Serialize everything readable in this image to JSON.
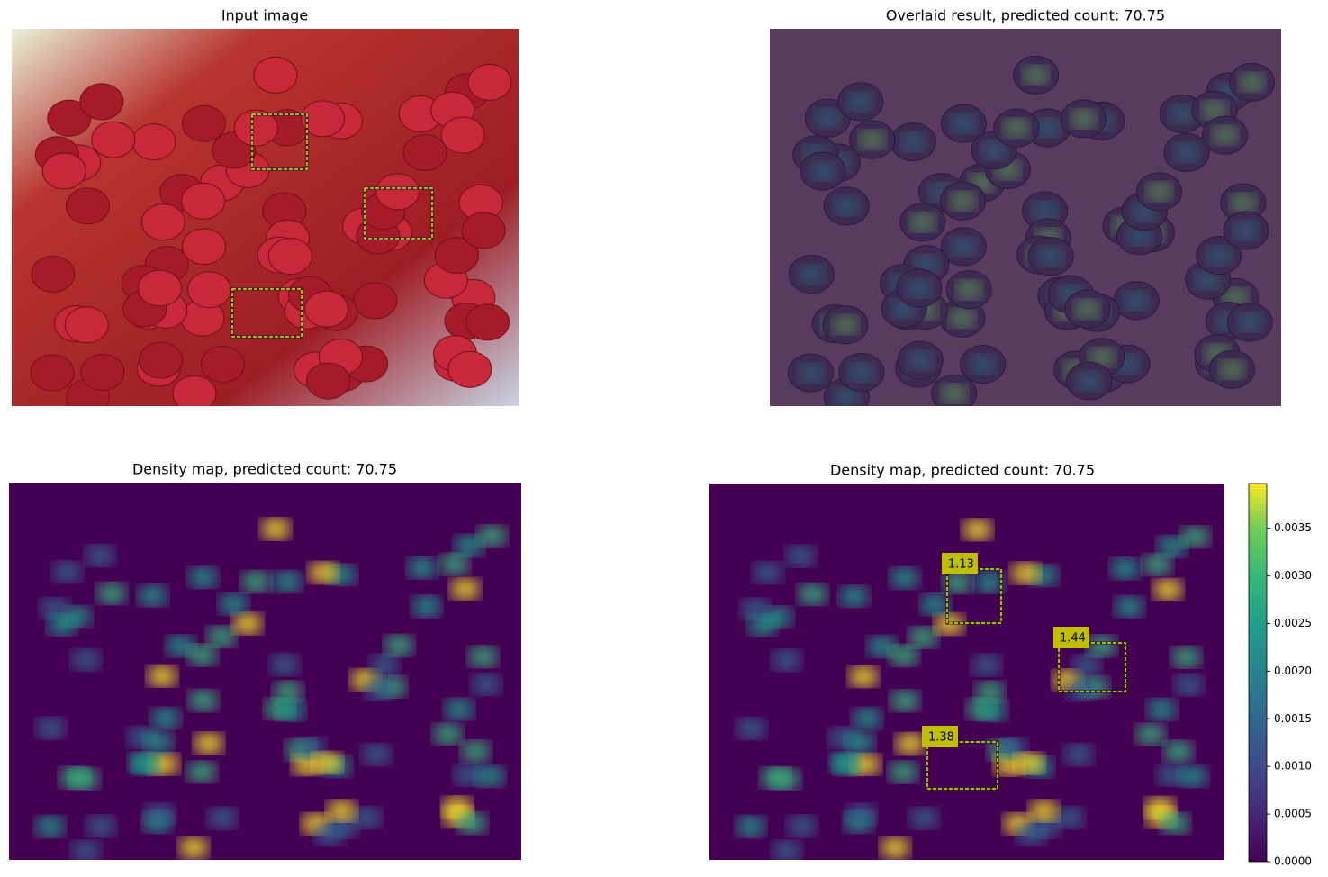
{
  "panels": [
    {
      "title": "Input image"
    },
    {
      "title": "Overlaid result, predicted count: 70.75"
    },
    {
      "title": "Density map, predicted count: 70.75"
    },
    {
      "title": "Density map, predicted count: 70.75"
    }
  ],
  "exemplars": [
    {
      "count": 1.13
    },
    {
      "count": 1.44
    },
    {
      "count": 1.38
    }
  ],
  "colorbar": {
    "colormap": "viridis",
    "ylim": [
      0,
      0.00397
    ],
    "yticks": [
      {
        "value": 0,
        "label": "0.0000"
      },
      {
        "value": 0.0005,
        "label": "0.0005"
      },
      {
        "value": 0.001,
        "label": "0.0010"
      },
      {
        "value": 0.0015,
        "label": "0.0015"
      },
      {
        "value": 0.002,
        "label": "0.0020"
      },
      {
        "value": 0.0025,
        "label": "0.0025"
      },
      {
        "value": 0.003,
        "label": "0.0030"
      },
      {
        "value": 0.0035,
        "label": "0.0035"
      }
    ]
  }
}
